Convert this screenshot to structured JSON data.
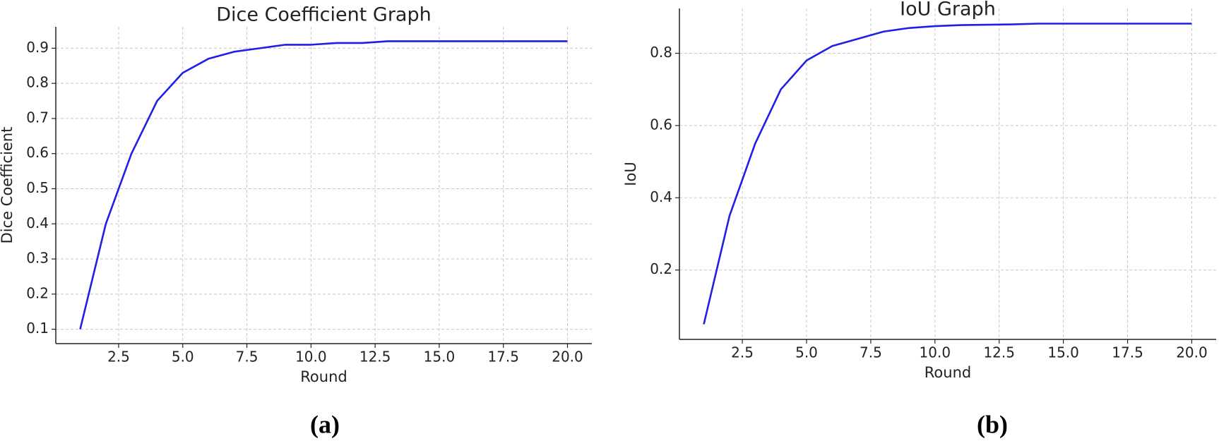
{
  "chart_data": [
    {
      "type": "line",
      "title": "Dice Coefficient Graph",
      "xlabel": "Round",
      "ylabel": "Dice Coefficient",
      "caption": "(a)",
      "x": [
        1,
        2,
        3,
        4,
        5,
        6,
        7,
        8,
        9,
        10,
        11,
        12,
        13,
        14,
        15,
        16,
        17,
        18,
        19,
        20
      ],
      "series": [
        {
          "name": "Dice Coefficient",
          "color": "#1f1fe6",
          "values": [
            0.1,
            0.4,
            0.6,
            0.75,
            0.83,
            0.87,
            0.89,
            0.9,
            0.91,
            0.91,
            0.915,
            0.915,
            0.92,
            0.92,
            0.92,
            0.92,
            0.92,
            0.92,
            0.92,
            0.92
          ]
        }
      ],
      "xlim": [
        0.05,
        20.95
      ],
      "ylim": [
        0.059,
        0.961
      ],
      "xticks": [
        2.5,
        {
          "value": 5,
          "label": "5.0"
        },
        7.5,
        {
          "value": 10,
          "label": "10.0"
        },
        12.5,
        {
          "value": 15,
          "label": "15.0"
        },
        17.5,
        {
          "value": 20,
          "label": "20.0"
        }
      ],
      "yticks": [
        0.1,
        0.2,
        0.3,
        0.4,
        0.5,
        0.6,
        0.7,
        0.8,
        0.9
      ],
      "grid": true
    },
    {
      "type": "line",
      "title": "IoU Graph",
      "xlabel": "Round",
      "ylabel": "IoU",
      "caption": "(b)",
      "x": [
        1,
        2,
        3,
        4,
        5,
        6,
        7,
        8,
        9,
        10,
        11,
        12,
        13,
        14,
        15,
        16,
        17,
        18,
        19,
        20
      ],
      "series": [
        {
          "name": "IoU",
          "color": "#1f1fe6",
          "values": [
            0.05,
            0.35,
            0.55,
            0.7,
            0.78,
            0.82,
            0.84,
            0.86,
            0.87,
            0.875,
            0.878,
            0.879,
            0.88,
            0.882,
            0.882,
            0.882,
            0.882,
            0.882,
            0.882,
            0.882
          ]
        }
      ],
      "xlim": [
        0.05,
        20.95
      ],
      "ylim": [
        0.008,
        0.924
      ],
      "xticks": [
        2.5,
        {
          "value": 5,
          "label": "5.0"
        },
        7.5,
        {
          "value": 10,
          "label": "10.0"
        },
        12.5,
        {
          "value": 15,
          "label": "15.0"
        },
        17.5,
        {
          "value": 20,
          "label": "20.0"
        }
      ],
      "yticks": [
        0.2,
        0.4,
        0.6,
        0.8
      ],
      "grid": true
    }
  ]
}
